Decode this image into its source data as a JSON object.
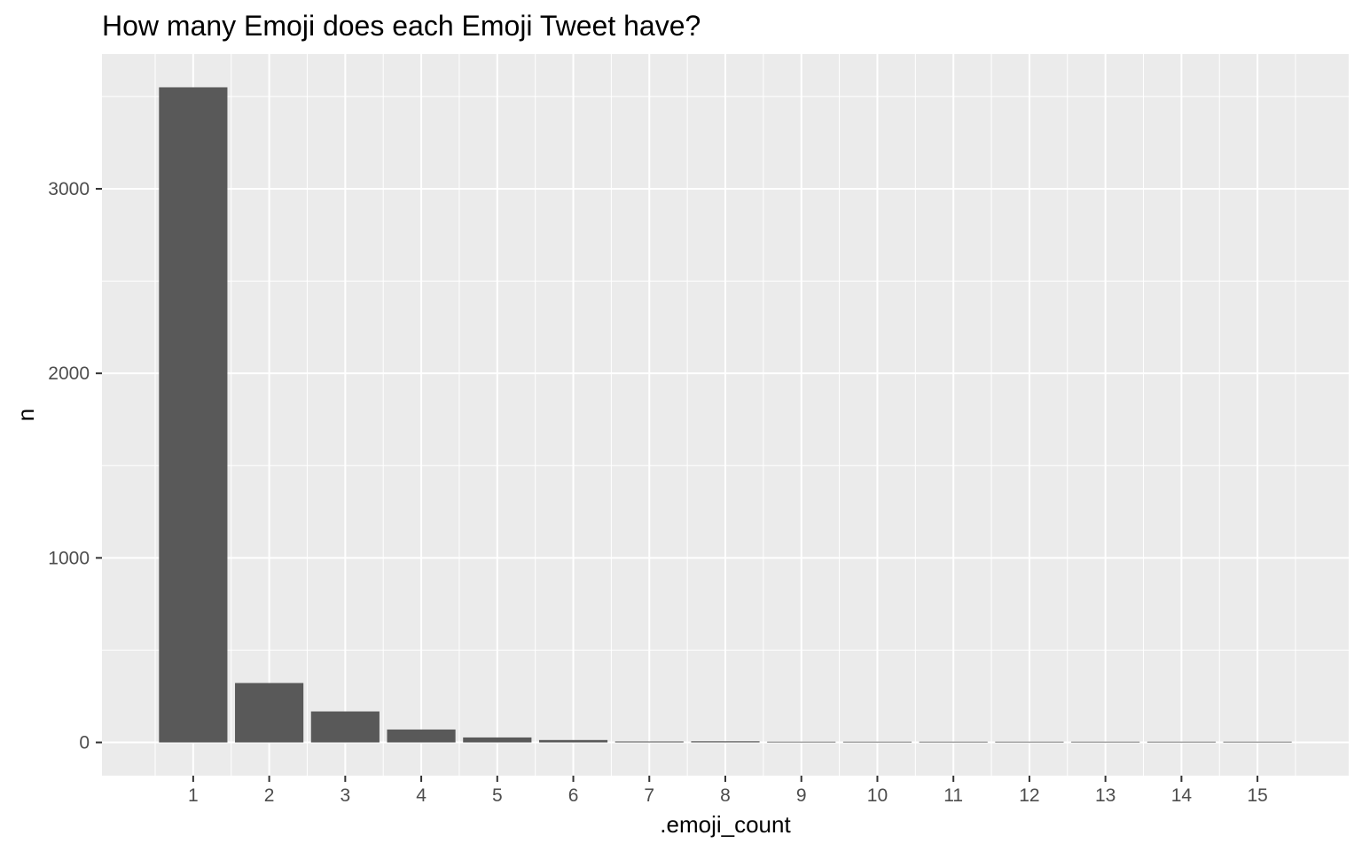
{
  "chart_data": {
    "type": "bar",
    "title": "How many Emoji does each Emoji Tweet have?",
    "xlabel": ".emoji_count",
    "ylabel": "n",
    "categories": [
      "1",
      "2",
      "3",
      "4",
      "5",
      "6",
      "7",
      "8",
      "9",
      "10",
      "11",
      "12",
      "13",
      "14",
      "15"
    ],
    "values": [
      3550,
      322,
      168,
      70,
      27,
      13,
      5,
      6,
      2,
      1,
      3,
      1,
      1,
      1,
      1
    ],
    "xlim": [
      -0.2,
      16.2
    ],
    "ylim": [
      -180,
      3730
    ],
    "yticks": [
      0,
      1000,
      2000,
      3000
    ],
    "ytick_labels": [
      "0",
      "1000",
      "2000",
      "3000"
    ],
    "grid": true,
    "legend": "none",
    "colors": {
      "panel_background": "#ebebeb",
      "grid_major": "#ffffff",
      "bar_fill": "#595959",
      "tick_text": "#4d4d4d",
      "tick_mark": "#333333"
    }
  }
}
